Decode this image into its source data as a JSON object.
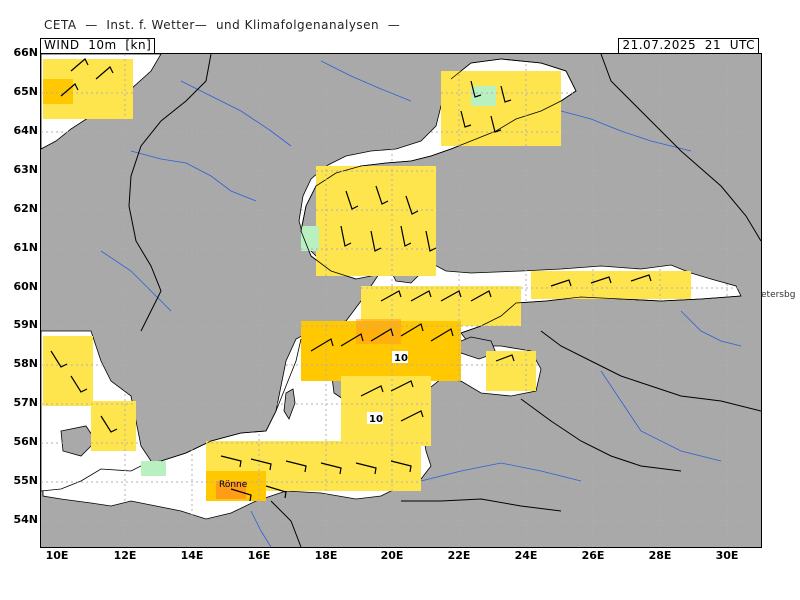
{
  "header": {
    "institute": "CETA  —  Inst. f. Wetter—  und Klimafolgenanalysen  —",
    "variable": "WIND  10m  [kn]",
    "datetime": "21.07.2025  21  UTC"
  },
  "axes": {
    "latitudes": [
      "66N",
      "65N",
      "64N",
      "63N",
      "62N",
      "61N",
      "60N",
      "59N",
      "58N",
      "57N",
      "56N",
      "55N",
      "54N"
    ],
    "longitudes": [
      "10E",
      "12E",
      "14E",
      "16E",
      "18E",
      "20E",
      "22E",
      "24E",
      "26E",
      "28E",
      "30E"
    ]
  },
  "map": {
    "places": {
      "ronne": "Rönne",
      "petersburg": "etersbg"
    },
    "contour_labels": [
      "10",
      "10"
    ],
    "colors": {
      "land": "#a9a9a9",
      "sea_calm": "#ffffff",
      "wind_5_10kn": "#ffe54d",
      "wind_10_15kn": "#ffc800",
      "wind_15_20kn": "#ff9d1a",
      "wind_light": "#b8f0c0",
      "rivers": "#2f5fd6",
      "borders": "#000000",
      "grid": "#b0b0b0"
    }
  }
}
